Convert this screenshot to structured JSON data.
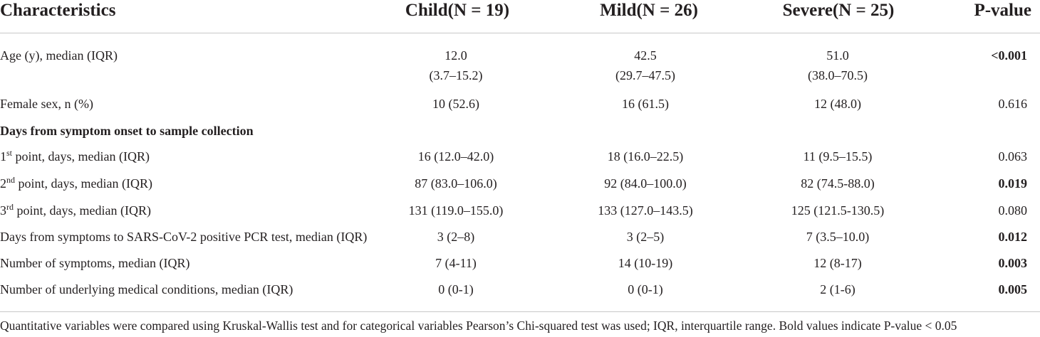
{
  "header": {
    "characteristics": "Characteristics",
    "child": "Child(N = 19)",
    "mild": "Mild(N = 26)",
    "severe": "Severe(N = 25)",
    "pvalue": "P-value"
  },
  "rows": [
    {
      "label": "Age (y), median (IQR)",
      "child": [
        "12.0",
        "(3.7–15.2)"
      ],
      "mild": [
        "42.5",
        "(29.7–47.5)"
      ],
      "severe": [
        "51.0",
        "(38.0–70.5)"
      ],
      "p": "<0.001",
      "p_bold": true
    },
    {
      "label": "Female sex, n (%)",
      "child": "10 (52.6)",
      "mild": "16 (61.5)",
      "severe": "12 (48.0)",
      "p": "0.616",
      "p_bold": false
    },
    {
      "section": "Days from symptom onset to sample collection"
    },
    {
      "label_num": "1",
      "label_sup": "st",
      "label_rest": " point, days, median (IQR)",
      "child": "16 (12.0–42.0)",
      "mild": "18 (16.0–22.5)",
      "severe": "11 (9.5–15.5)",
      "p": "0.063",
      "p_bold": false
    },
    {
      "label_num": "2",
      "label_sup": "nd",
      "label_rest": " point, days, median (IQR)",
      "child": "87 (83.0–106.0)",
      "mild": "92 (84.0–100.0)",
      "severe": "82 (74.5-88.0)",
      "p": "0.019",
      "p_bold": true
    },
    {
      "label_num": "3",
      "label_sup": "rd",
      "label_rest": " point, days, median (IQR)",
      "child": "131 (119.0–155.0)",
      "mild": "133 (127.0–143.5)",
      "severe": "125 (121.5-130.5)",
      "p": "0.080",
      "p_bold": false
    },
    {
      "label": "Days from symptoms to SARS-CoV-2 positive PCR test, median (IQR)",
      "child": "3 (2–8)",
      "mild": "3 (2–5)",
      "severe": "7 (3.5–10.0)",
      "p": "0.012",
      "p_bold": true
    },
    {
      "label": "Number of symptoms, median (IQR)",
      "child": "7 (4-11)",
      "mild": "14 (10-19)",
      "severe": "12 (8-17)",
      "p": "0.003",
      "p_bold": true
    },
    {
      "label": "Number of underlying medical conditions, median (IQR)",
      "child": "0 (0-1)",
      "mild": "0 (0-1)",
      "severe": "2 (1-6)",
      "p": "0.005",
      "p_bold": true
    }
  ],
  "footnote": "Quantitative variables were compared using Kruskal-Wallis test and for categorical variables Pearson’s Chi-squared test was used; IQR, interquartile range. Bold values indicate P-value < 0.05"
}
